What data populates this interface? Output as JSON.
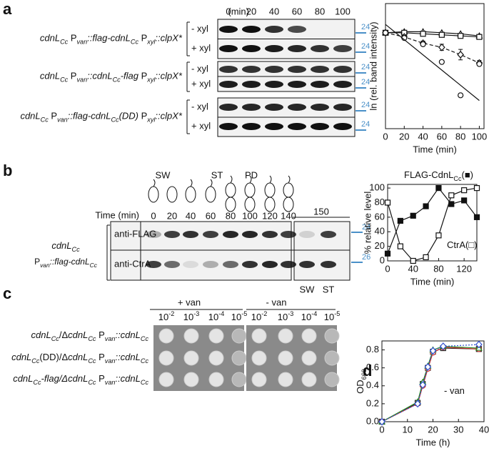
{
  "panel_labels": [
    "a",
    "b",
    "c",
    "d"
  ],
  "panel_a": {
    "time_unit": "(min)",
    "times": [
      0,
      20,
      40,
      60,
      80,
      100
    ],
    "conditions": [
      "- xyl",
      "+ xyl"
    ],
    "size_marker": "24",
    "strains": [
      [
        [
          "cdnL",
          "i"
        ],
        [
          "Cc",
          "si"
        ],
        [
          " P",
          "n"
        ],
        [
          "van",
          "si"
        ],
        [
          "::flag-cdnL",
          "i"
        ],
        [
          "Cc",
          "si"
        ],
        [
          " P",
          "n"
        ],
        [
          "xyl",
          "si"
        ],
        [
          "::clpX*",
          "i"
        ]
      ],
      [
        [
          "cdnL",
          "i"
        ],
        [
          "Cc",
          "si"
        ],
        [
          " P",
          "n"
        ],
        [
          "van",
          "si"
        ],
        [
          "::cdnL",
          "i"
        ],
        [
          "Cc",
          "si"
        ],
        [
          "-flag",
          "i"
        ],
        [
          " P",
          "n"
        ],
        [
          "xyl",
          "si"
        ],
        [
          "::clpX*",
          "i"
        ]
      ],
      [
        [
          "cdnL",
          "i"
        ],
        [
          "Cc",
          "si"
        ],
        [
          " P",
          "n"
        ],
        [
          "van",
          "si"
        ],
        [
          "::flag-cdnL",
          "i"
        ],
        [
          "Cc",
          "si"
        ],
        [
          "(DD)",
          "i"
        ],
        [
          " P",
          "n"
        ],
        [
          "xyl",
          "si"
        ],
        [
          "::clpX*",
          "i"
        ]
      ]
    ]
  },
  "panel_b": {
    "cell_stages": [
      "SW",
      "ST",
      "PD"
    ],
    "time_label": "Time (min)",
    "times": [
      0,
      20,
      40,
      60,
      80,
      100,
      120,
      140
    ],
    "extra_time": 150,
    "antibodies": [
      "anti-FLAG",
      "anti-CtrA"
    ],
    "size_markers": [
      "24",
      "26"
    ],
    "extra_lanes": [
      "SW",
      "ST"
    ],
    "strain": [
      [
        [
          "cdnL",
          "i"
        ],
        [
          "Cc",
          "si"
        ]
      ],
      [
        [
          "P",
          "n"
        ],
        [
          "van",
          "si"
        ],
        [
          "::flag-cdnL",
          "i"
        ],
        [
          "Cc",
          "si"
        ]
      ]
    ]
  },
  "panel_c": {
    "treatments": [
      "+ van",
      "- van"
    ],
    "dilutions": [
      [
        [
          "10",
          "n"
        ],
        [
          "-2",
          "p"
        ]
      ],
      [
        [
          "10",
          "n"
        ],
        [
          "-3",
          "p"
        ]
      ],
      [
        [
          "10",
          "n"
        ],
        [
          "-4",
          "p"
        ]
      ],
      [
        [
          "10",
          "n"
        ],
        [
          "-5",
          "p"
        ]
      ]
    ],
    "strains": [
      [
        [
          "cdnL",
          "i"
        ],
        [
          "Cc",
          "si"
        ],
        [
          "/Δ",
          "n"
        ],
        [
          "cdnL",
          "i"
        ],
        [
          "Cc",
          "si"
        ],
        [
          " P",
          "n"
        ],
        [
          "van",
          "si"
        ],
        [
          "::cdnL",
          "i"
        ],
        [
          "Cc",
          "si"
        ]
      ],
      [
        [
          "cdnL",
          "i"
        ],
        [
          "Cc",
          "si"
        ],
        [
          "(DD)/Δ",
          "n"
        ],
        [
          "cdnL",
          "i"
        ],
        [
          "Cc",
          "si"
        ],
        [
          " P",
          "n"
        ],
        [
          "van",
          "si"
        ],
        [
          "::cdnL",
          "i"
        ],
        [
          "Cc",
          "si"
        ]
      ],
      [
        [
          "cdnL",
          "i"
        ],
        [
          "Cc",
          "si"
        ],
        [
          "-flag/Δ",
          "i"
        ],
        [
          "cdnL",
          "i"
        ],
        [
          "Cc",
          "si"
        ],
        [
          " P",
          "n"
        ],
        [
          "van",
          "si"
        ],
        [
          "::cdnL",
          "i"
        ],
        [
          "Cc",
          "si"
        ]
      ]
    ]
  },
  "chart_data": [
    {
      "type": "line",
      "xlabel": "Time (min)",
      "ylabel": "ln (rel. band intensity)",
      "x": [
        0,
        20,
        40,
        60,
        80,
        100
      ],
      "xlim": [
        0,
        105
      ],
      "xticks": [
        0,
        20,
        40,
        60,
        80,
        100
      ],
      "ylim": [
        0,
        6
      ],
      "series": [
        {
          "marker": "triangle",
          "filled": false,
          "line": "solid",
          "color": "#111",
          "values": [
            4.6,
            4.65,
            4.65,
            4.6,
            4.55,
            4.45
          ]
        },
        {
          "marker": "square",
          "filled": false,
          "line": "solid",
          "color": "#111",
          "values": [
            4.6,
            4.6,
            4.55,
            4.5,
            4.45,
            4.4
          ]
        },
        {
          "marker": "diamond",
          "filled": false,
          "line": "dashed",
          "color": "#111",
          "values": [
            4.6,
            4.4,
            4.1,
            3.9,
            3.55,
            3.15
          ],
          "errors": [
            0.05,
            0.1,
            0.1,
            0.15,
            0.25,
            0.12
          ]
        },
        {
          "marker": "circle",
          "filled": false,
          "line": "none",
          "color": "#111",
          "values": [
            4.6,
            4.35,
            4.05,
            3.2,
            1.6,
            3.1
          ]
        },
        {
          "marker": "none",
          "line": "solid",
          "color": "#111",
          "x": [
            0,
            100
          ],
          "values": [
            5.0,
            1.35
          ]
        }
      ]
    },
    {
      "type": "line",
      "xlabel": "Time (min)",
      "ylabel": "% relative level",
      "x": [
        0,
        20,
        40,
        60,
        80,
        100,
        120,
        140
      ],
      "xlim": [
        0,
        140
      ],
      "xticks": [
        0,
        40,
        80,
        120
      ],
      "ylim": [
        0,
        105
      ],
      "yticks": [
        0,
        20,
        40,
        60,
        80,
        100
      ],
      "annotations": [
        [
          [
            "FLAG-CdnL",
            "n"
          ],
          [
            "Cc",
            "s"
          ],
          [
            "(■)",
            "n"
          ]
        ],
        [
          [
            "CtrA(□)",
            "n"
          ]
        ]
      ],
      "series": [
        {
          "marker": "square",
          "filled": true,
          "line": "solid",
          "color": "#111",
          "values": [
            10,
            55,
            62,
            75,
            100,
            78,
            83,
            60
          ]
        },
        {
          "marker": "square",
          "filled": false,
          "line": "solid",
          "color": "#111",
          "values": [
            80,
            20,
            0,
            5,
            35,
            90,
            97,
            100
          ]
        }
      ]
    },
    {
      "type": "line",
      "xlabel": "Time (h)",
      "ylabel": [
        [
          "OD",
          "n"
        ],
        [
          "660",
          "s"
        ]
      ],
      "x": [
        0,
        14,
        16,
        18,
        20,
        24,
        38
      ],
      "xlim": [
        0,
        40
      ],
      "xticks": [
        0,
        10,
        20,
        30,
        40
      ],
      "ylim": [
        0,
        0.9
      ],
      "yticks": [
        {
          "value": 0,
          "label": "0.0"
        },
        0.2,
        0.4,
        0.6,
        0.8
      ],
      "annotations": [
        [
          [
            "- van",
            "n"
          ]
        ]
      ],
      "series": [
        {
          "marker": "square",
          "filled": false,
          "line": "solid",
          "color": "#222222",
          "values": [
            0.0,
            0.21,
            0.42,
            0.6,
            0.78,
            0.82,
            0.81
          ]
        },
        {
          "marker": "circle",
          "filled": false,
          "line": "solid",
          "color": "#d03030",
          "values": [
            0.0,
            0.2,
            0.4,
            0.59,
            0.77,
            0.83,
            0.81
          ]
        },
        {
          "marker": "triangle",
          "filled": false,
          "line": "solid",
          "color": "#2a8a2a",
          "values": [
            0.0,
            0.22,
            0.44,
            0.62,
            0.8,
            0.84,
            0.82
          ]
        },
        {
          "marker": "diamond",
          "filled": false,
          "line": "dotted",
          "color": "#3050d0",
          "values": [
            0.0,
            0.2,
            0.41,
            0.61,
            0.79,
            0.84,
            0.86
          ]
        }
      ]
    }
  ]
}
